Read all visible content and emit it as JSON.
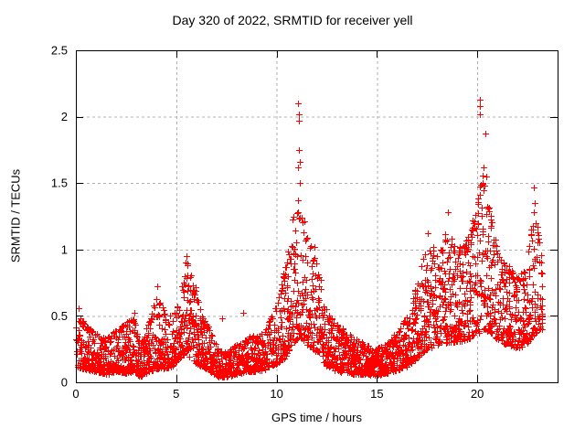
{
  "page": {
    "background": "#ffffff"
  },
  "chart_data": {
    "type": "scatter",
    "title": "Day 320 of 2022, SRMTID for receiver yell",
    "xlabel": "GPS time / hours",
    "ylabel": "SRMTID / TECUs",
    "xlim": [
      0,
      24
    ],
    "ylim": [
      0,
      2.5
    ],
    "xticks": [
      0,
      5,
      10,
      15,
      20
    ],
    "xtick_labels": [
      "0",
      "5",
      "10",
      "15",
      "20"
    ],
    "yticks": [
      0,
      0.5,
      1,
      1.5,
      2,
      2.5
    ],
    "ytick_labels": [
      "0",
      "0.5",
      "1",
      "1.5",
      "2",
      "2.5"
    ],
    "grid": {
      "shown": true,
      "style": "dashed",
      "color": "#b0b0b0"
    },
    "legend": {
      "shown": false
    },
    "marker": {
      "glyph": "+",
      "color": "#ff0000",
      "size": 7
    },
    "axis_color": "#000000",
    "series_name": "SRMTID",
    "x_start": 0.02,
    "x_end": 23.25,
    "envelope": [
      [
        0.0,
        0.12,
        0.55
      ],
      [
        0.4,
        0.1,
        0.45
      ],
      [
        1.0,
        0.08,
        0.38
      ],
      [
        1.5,
        0.06,
        0.33
      ],
      [
        2.0,
        0.08,
        0.4
      ],
      [
        2.5,
        0.07,
        0.45
      ],
      [
        2.9,
        0.08,
        0.5
      ],
      [
        3.2,
        0.04,
        0.28
      ],
      [
        3.6,
        0.08,
        0.45
      ],
      [
        4.0,
        0.1,
        0.65
      ],
      [
        4.4,
        0.1,
        0.55
      ],
      [
        4.8,
        0.12,
        0.5
      ],
      [
        5.2,
        0.18,
        0.65
      ],
      [
        5.5,
        0.22,
        0.93
      ],
      [
        5.9,
        0.15,
        0.75
      ],
      [
        6.3,
        0.12,
        0.5
      ],
      [
        6.7,
        0.08,
        0.4
      ],
      [
        7.1,
        0.04,
        0.25
      ],
      [
        7.5,
        0.04,
        0.22
      ],
      [
        8.0,
        0.06,
        0.3
      ],
      [
        8.5,
        0.08,
        0.35
      ],
      [
        9.0,
        0.08,
        0.35
      ],
      [
        9.5,
        0.1,
        0.42
      ],
      [
        10.0,
        0.14,
        0.6
      ],
      [
        10.4,
        0.18,
        0.85
      ],
      [
        10.8,
        0.28,
        1.25
      ],
      [
        11.1,
        0.35,
        1.45
      ],
      [
        11.4,
        0.3,
        1.2
      ],
      [
        11.8,
        0.25,
        1.0
      ],
      [
        12.1,
        0.2,
        0.85
      ],
      [
        12.5,
        0.12,
        0.55
      ],
      [
        13.0,
        0.08,
        0.45
      ],
      [
        13.5,
        0.07,
        0.38
      ],
      [
        14.0,
        0.06,
        0.32
      ],
      [
        14.5,
        0.06,
        0.28
      ],
      [
        15.0,
        0.05,
        0.26
      ],
      [
        15.5,
        0.07,
        0.3
      ],
      [
        16.0,
        0.09,
        0.38
      ],
      [
        16.5,
        0.12,
        0.5
      ],
      [
        17.0,
        0.18,
        0.75
      ],
      [
        17.5,
        0.25,
        1.05
      ],
      [
        18.0,
        0.28,
        1.0
      ],
      [
        18.5,
        0.3,
        1.15
      ],
      [
        19.0,
        0.3,
        1.0
      ],
      [
        19.5,
        0.32,
        1.1
      ],
      [
        19.9,
        0.35,
        1.3
      ],
      [
        20.3,
        0.4,
        1.6
      ],
      [
        20.6,
        0.38,
        1.3
      ],
      [
        21.0,
        0.32,
        1.05
      ],
      [
        21.5,
        0.28,
        0.9
      ],
      [
        22.0,
        0.26,
        0.8
      ],
      [
        22.4,
        0.28,
        0.85
      ],
      [
        22.8,
        0.35,
        1.3
      ],
      [
        23.1,
        0.4,
        1.1
      ],
      [
        23.25,
        0.4,
        0.9
      ]
    ],
    "outliers": [
      [
        11.08,
        2.1
      ],
      [
        11.1,
        2.02
      ],
      [
        11.09,
        1.97
      ],
      [
        11.12,
        1.75
      ],
      [
        11.14,
        1.66
      ],
      [
        11.05,
        1.62
      ],
      [
        11.18,
        1.5
      ],
      [
        11.9,
        1.02
      ],
      [
        20.12,
        2.13
      ],
      [
        20.15,
        2.08
      ],
      [
        20.13,
        2.02
      ],
      [
        20.4,
        1.87
      ],
      [
        20.32,
        1.62
      ],
      [
        20.45,
        1.55
      ],
      [
        20.28,
        1.5
      ],
      [
        22.82,
        1.47
      ],
      [
        22.85,
        1.35
      ],
      [
        22.8,
        1.28
      ],
      [
        18.55,
        1.28
      ],
      [
        17.52,
        1.12
      ],
      [
        5.5,
        0.95
      ],
      [
        4.05,
        0.72
      ],
      [
        8.32,
        0.52
      ],
      [
        2.92,
        0.52
      ],
      [
        0.15,
        0.56
      ],
      [
        7.3,
        0.48
      ]
    ],
    "render_hints": {
      "epoch_step_hours": 0.0135,
      "seed": 320,
      "skew_power": 1.7,
      "burst_chance": 0.07
    }
  }
}
